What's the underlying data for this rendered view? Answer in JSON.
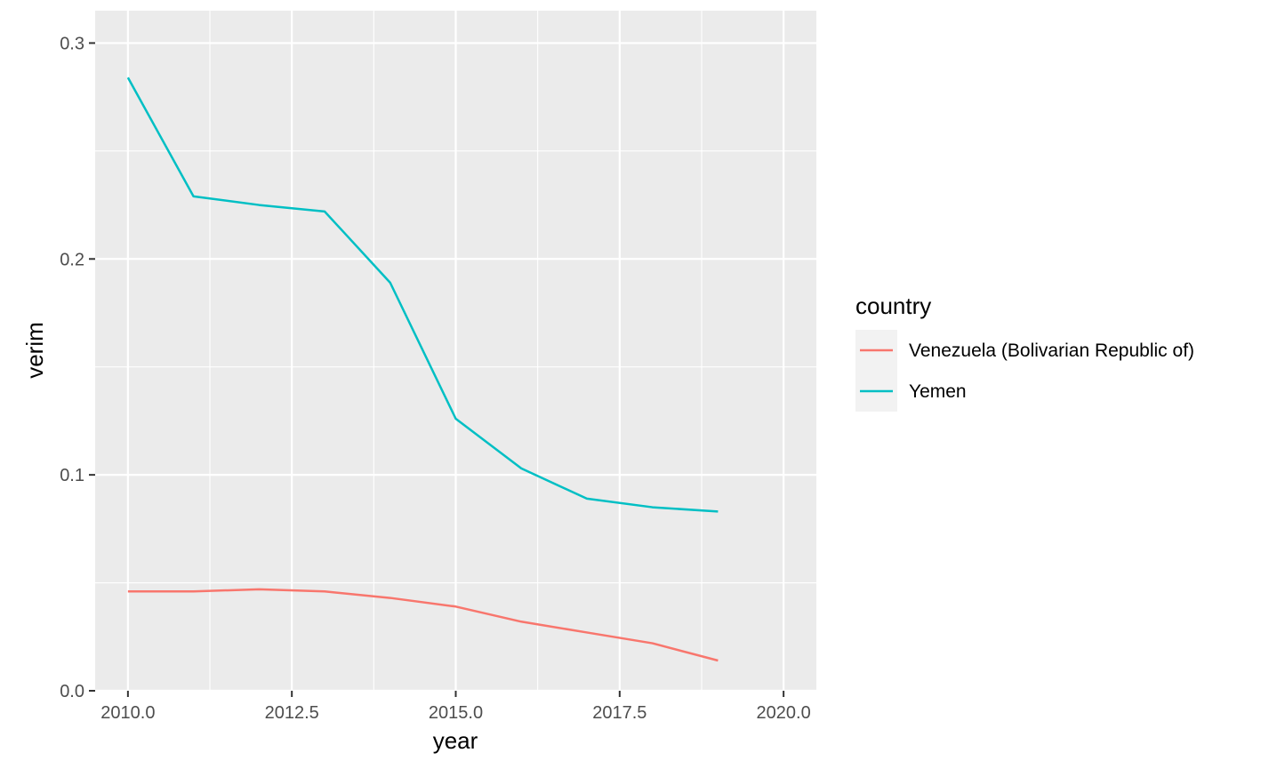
{
  "chart_data": {
    "type": "line",
    "xlabel": "year",
    "ylabel": "verim",
    "xlim": [
      2009.5,
      2020.5
    ],
    "ylim": [
      0.0,
      0.3
    ],
    "x_ticks": [
      2010.0,
      2012.5,
      2015.0,
      2017.5,
      2020.0
    ],
    "x_tick_labels": [
      "2010.0",
      "2012.5",
      "2015.0",
      "2017.5",
      "2020.0"
    ],
    "y_ticks": [
      0.0,
      0.1,
      0.2,
      0.3
    ],
    "y_tick_labels": [
      "0.0",
      "0.1",
      "0.2",
      "0.3"
    ],
    "grid": true,
    "legend": {
      "title": "country",
      "placement": "right"
    },
    "x": [
      2010,
      2011,
      2012,
      2013,
      2014,
      2015,
      2016,
      2017,
      2018,
      2019
    ],
    "series": [
      {
        "name": "Venezuela (Bolivarian Republic of)",
        "color": "#F8766D",
        "values": [
          0.046,
          0.046,
          0.047,
          0.046,
          0.043,
          0.039,
          0.032,
          0.027,
          0.022,
          0.014
        ]
      },
      {
        "name": "Yemen",
        "color": "#00BFC4",
        "values": [
          0.284,
          0.229,
          0.225,
          0.222,
          0.189,
          0.126,
          0.103,
          0.089,
          0.085,
          0.083
        ]
      }
    ]
  },
  "colors": {
    "panel_background": "#EBEBEB",
    "grid_line": "#FFFFFF",
    "legend_key_background": "#F2F2F2"
  }
}
